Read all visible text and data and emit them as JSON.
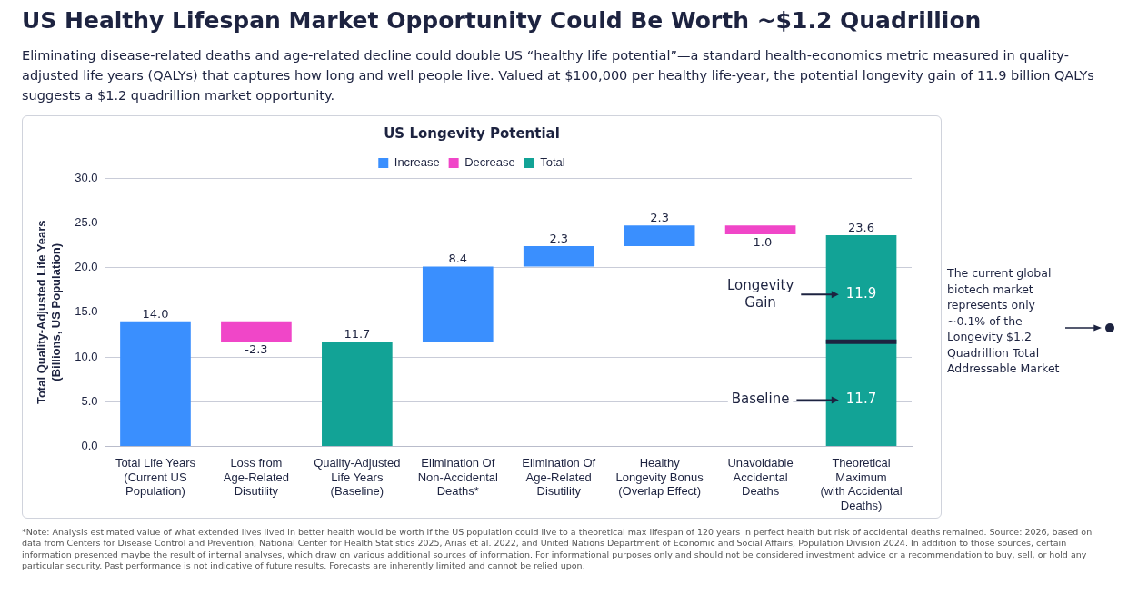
{
  "chart_data": {
    "type": "bar",
    "title": "US Healthy Lifespan Market Opportunity Could Be Worth ~$1.2 Quadrillion",
    "subtitle": "Eliminating disease-related deaths and age-related decline could double US “healthy life potential”—a standard health-economics metric measured in quality-adjusted life years (QALYs) that captures how long and well people live. Valued at $100,000 per healthy life-year, the potential longevity gain of 11.9 billion QALYs suggests a $1.2 quadrillion market opportunity.",
    "ylabel": "Total Quality-Adjusted Life Years\n(Billions, US Population)",
    "categories": [
      "Total Life Years\n(Current US\nPopulation)",
      "Loss from\nAge-Related\nDisutility",
      "Quality-Adjusted\nLife Years\n(Baseline)",
      "Elimination Of\nNon-Accidental\nDeaths*",
      "Elimination Of\nAge-Related\nDisutility",
      "Healthy\nLongevity Bonus\n(Overlap Effect)",
      "Unavoidable\nAccidental\nDeaths",
      "Theoretical\nMaximum\n(with Accidental\nDeaths)"
    ],
    "series": [
      {
        "name": "Increase",
        "color": "#3a8ffe",
        "values": [
          14.0,
          null,
          null,
          8.4,
          2.3,
          2.3,
          null,
          null
        ],
        "base": [
          0,
          null,
          null,
          11.7,
          20.1,
          22.4,
          null,
          null
        ],
        "value_labels": [
          "14.0",
          null,
          null,
          "8.4",
          "2.3",
          "2.3",
          null,
          null
        ]
      },
      {
        "name": "Decrease",
        "color": "#f046c8",
        "values": [
          null,
          -2.3,
          null,
          null,
          null,
          null,
          -1.0,
          null
        ],
        "base": [
          null,
          14.0,
          null,
          null,
          null,
          null,
          24.7,
          null
        ],
        "value_labels": [
          null,
          "-2.3",
          null,
          null,
          null,
          null,
          "-1.0",
          null
        ]
      },
      {
        "name": "Total",
        "color": "#12a396",
        "values": [
          null,
          null,
          11.7,
          null,
          null,
          null,
          null,
          23.6
        ],
        "base": [
          null,
          null,
          0,
          null,
          null,
          null,
          null,
          0
        ],
        "value_labels": [
          null,
          null,
          "11.7",
          null,
          null,
          null,
          null,
          "23.6"
        ]
      }
    ],
    "ylim": [
      0,
      30
    ],
    "yticks": [
      {
        "value": 0,
        "label": "0.0"
      },
      {
        "value": 5,
        "label": "5.0"
      },
      {
        "value": 10,
        "label": "10.0"
      },
      {
        "value": 15,
        "label": "15.0"
      },
      {
        "value": 20,
        "label": "20.0"
      },
      {
        "value": 25,
        "label": "25.0"
      },
      {
        "value": 30,
        "label": "30.0"
      }
    ],
    "grid": "y",
    "legend": "top",
    "ref_lines": [
      {
        "axis": "y",
        "value": 11.7,
        "color": "#1d2340"
      }
    ],
    "annotations": [
      "US Longevity Potential",
      "Longevity\nGain",
      "11.9",
      "Baseline",
      "11.7",
      "The current global biotech market represents only ~0.1% of the Longevity $1.2 Quadrillion Total Addressable Market",
      "*Note: Analysis estimated value of what extended lives lived in better health would be worth if the US population could live to a theoretical max lifespan of 120 years in perfect health but risk of accidental deaths remained. Source: 2026, based on data from Centers for Disease Control and Prevention, National Center for Health Statistics 2025, Arias et al. 2022, and United Nations Department of Economic and Social Affairs, Population Division 2024. In addition to those sources, certain information presented maybe the result of internal analyses, which draw on various additional sources of information. For informational purposes only and should not be considered investment advice or a recommendation to buy, sell, or hold any particular security. Past performance is not indicative of future results. Forecasts are inherently limited and cannot be relied upon."
    ]
  }
}
